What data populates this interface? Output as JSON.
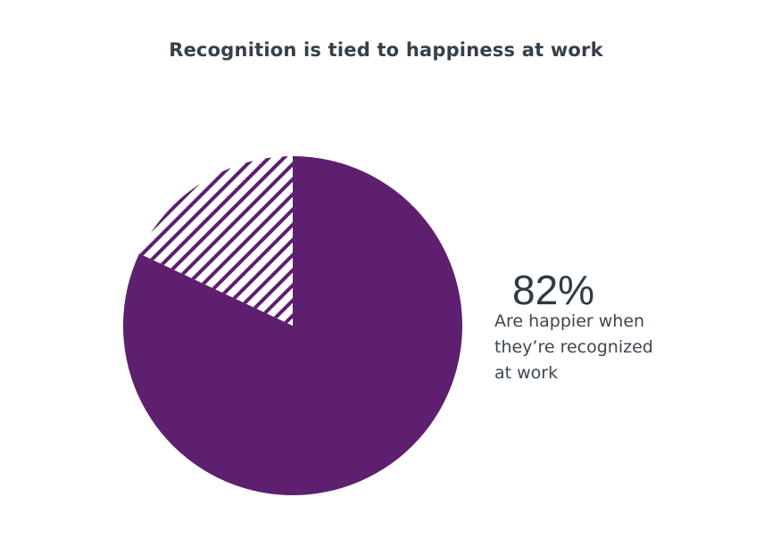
{
  "chart_data": {
    "type": "pie",
    "title": "Recognition is tied to happiness at work",
    "slices": [
      {
        "value": 82,
        "color": "#5d1f6e",
        "fill": "solid"
      },
      {
        "value": 18,
        "color": "#5d1f6e",
        "fill": "hatched"
      }
    ],
    "callout": {
      "value": "82%",
      "lines": [
        "Are happier when",
        "they’re recognized",
        "at work"
      ]
    }
  }
}
